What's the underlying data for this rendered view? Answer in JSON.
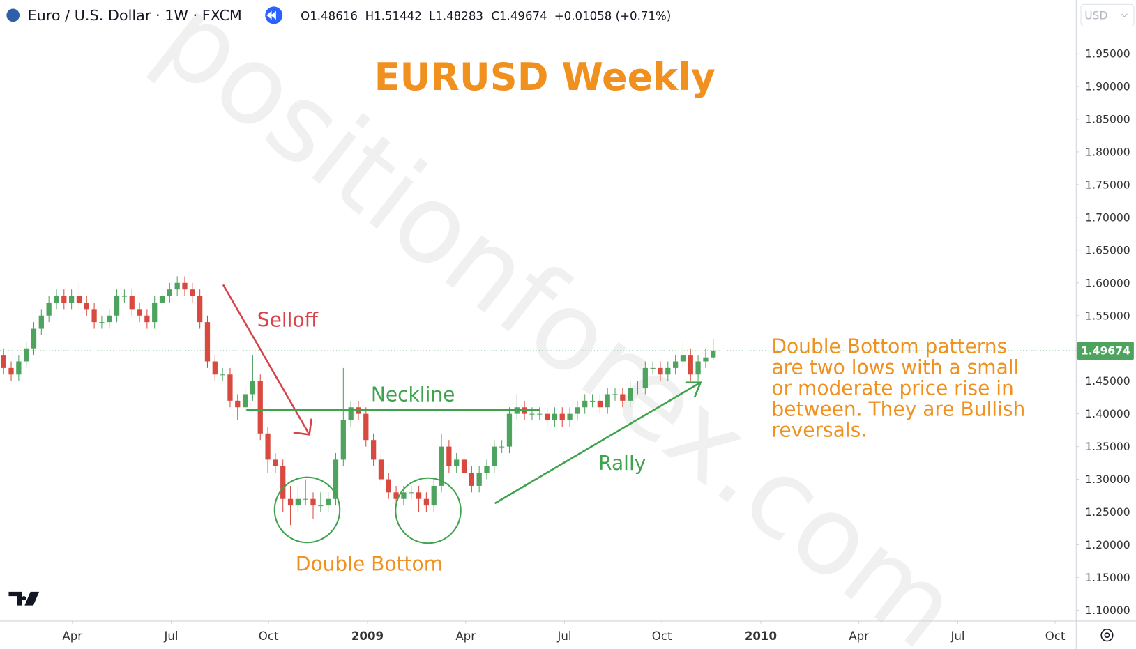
{
  "chart_data": {
    "type": "candlestick",
    "symbol": "Euro / U.S. Dollar · 1W · FXCM",
    "ohlc_header": [
      "O1.48616",
      "H1.51442",
      "L1.48283",
      "C1.49674",
      "+0.01058 (+0.71%)"
    ],
    "currency": "USD",
    "title": "EURUSD Weekly",
    "watermark": "positionforex.com",
    "annotations": {
      "selloff": "Selloff",
      "neckline": "Neckline",
      "double_bottom": "Double Bottom",
      "rally": "Rally",
      "note": [
        "Double Bottom patterns",
        "are two lows with a small",
        "or moderate price rise in",
        "between.  They are Bullish",
        "reversals."
      ]
    },
    "up_color": "#4ea35f",
    "down_color": "#d84a3f",
    "x": [
      0,
      1,
      2,
      3,
      4,
      5,
      6,
      7,
      8,
      9,
      10,
      11,
      12,
      13,
      14,
      15,
      16,
      17,
      18,
      19,
      20,
      21,
      22,
      23,
      24,
      25,
      26,
      27,
      28,
      29,
      30,
      31,
      32,
      33,
      34,
      35,
      36,
      37,
      38,
      39,
      40,
      41,
      42,
      43,
      44,
      45,
      46,
      47,
      48,
      49,
      50,
      51,
      52,
      53,
      54,
      55,
      56,
      57,
      58,
      59,
      60,
      61,
      62,
      63,
      64,
      65,
      66,
      67,
      68,
      69,
      70,
      71,
      72,
      73,
      74,
      75,
      76,
      77,
      78,
      79,
      80,
      81,
      82,
      83,
      84,
      85,
      86,
      87,
      88,
      89,
      90,
      91,
      92,
      93,
      94
    ],
    "open": [
      1.49,
      1.47,
      1.46,
      1.48,
      1.5,
      1.53,
      1.55,
      1.57,
      1.58,
      1.57,
      1.58,
      1.57,
      1.56,
      1.54,
      1.54,
      1.55,
      1.58,
      1.58,
      1.56,
      1.55,
      1.54,
      1.57,
      1.58,
      1.59,
      1.6,
      1.59,
      1.58,
      1.54,
      1.48,
      1.46,
      1.46,
      1.42,
      1.41,
      1.43,
      1.45,
      1.37,
      1.33,
      1.32,
      1.27,
      1.26,
      1.27,
      1.27,
      1.26,
      1.26,
      1.27,
      1.33,
      1.39,
      1.41,
      1.4,
      1.36,
      1.33,
      1.3,
      1.28,
      1.27,
      1.28,
      1.28,
      1.27,
      1.26,
      1.29,
      1.35,
      1.32,
      1.33,
      1.31,
      1.29,
      1.31,
      1.32,
      1.35,
      1.35,
      1.4,
      1.41,
      1.4,
      1.4,
      1.4,
      1.39,
      1.4,
      1.39,
      1.4,
      1.41,
      1.42,
      1.42,
      1.41,
      1.43,
      1.43,
      1.42,
      1.44,
      1.44,
      1.47,
      1.47,
      1.46,
      1.47,
      1.48,
      1.49,
      1.46,
      1.48,
      1.48616
    ],
    "high": [
      1.5,
      1.48,
      1.49,
      1.51,
      1.54,
      1.56,
      1.58,
      1.59,
      1.59,
      1.59,
      1.6,
      1.58,
      1.57,
      1.55,
      1.56,
      1.59,
      1.59,
      1.59,
      1.57,
      1.56,
      1.58,
      1.59,
      1.6,
      1.61,
      1.61,
      1.6,
      1.59,
      1.55,
      1.49,
      1.47,
      1.47,
      1.43,
      1.44,
      1.49,
      1.46,
      1.38,
      1.34,
      1.33,
      1.29,
      1.29,
      1.3,
      1.28,
      1.28,
      1.28,
      1.34,
      1.47,
      1.42,
      1.42,
      1.41,
      1.37,
      1.34,
      1.31,
      1.29,
      1.29,
      1.29,
      1.29,
      1.28,
      1.3,
      1.37,
      1.36,
      1.34,
      1.34,
      1.32,
      1.32,
      1.33,
      1.36,
      1.36,
      1.41,
      1.43,
      1.42,
      1.41,
      1.41,
      1.41,
      1.41,
      1.41,
      1.41,
      1.42,
      1.43,
      1.43,
      1.43,
      1.44,
      1.44,
      1.44,
      1.45,
      1.45,
      1.48,
      1.48,
      1.48,
      1.48,
      1.49,
      1.51,
      1.5,
      1.49,
      1.5,
      1.51442
    ],
    "low": [
      1.46,
      1.45,
      1.45,
      1.47,
      1.49,
      1.52,
      1.54,
      1.56,
      1.56,
      1.56,
      1.56,
      1.55,
      1.53,
      1.53,
      1.53,
      1.54,
      1.57,
      1.55,
      1.54,
      1.53,
      1.53,
      1.56,
      1.57,
      1.58,
      1.58,
      1.57,
      1.53,
      1.47,
      1.45,
      1.45,
      1.41,
      1.39,
      1.4,
      1.42,
      1.36,
      1.31,
      1.31,
      1.25,
      1.23,
      1.25,
      1.26,
      1.24,
      1.25,
      1.25,
      1.26,
      1.32,
      1.38,
      1.39,
      1.35,
      1.32,
      1.29,
      1.27,
      1.26,
      1.26,
      1.27,
      1.25,
      1.25,
      1.25,
      1.28,
      1.31,
      1.31,
      1.3,
      1.28,
      1.28,
      1.3,
      1.31,
      1.34,
      1.34,
      1.39,
      1.39,
      1.39,
      1.39,
      1.38,
      1.38,
      1.38,
      1.38,
      1.39,
      1.4,
      1.41,
      1.4,
      1.4,
      1.42,
      1.41,
      1.41,
      1.43,
      1.43,
      1.46,
      1.45,
      1.45,
      1.46,
      1.47,
      1.45,
      1.45,
      1.47,
      1.48283
    ],
    "close": [
      1.47,
      1.46,
      1.48,
      1.5,
      1.53,
      1.55,
      1.57,
      1.58,
      1.57,
      1.58,
      1.57,
      1.56,
      1.54,
      1.54,
      1.55,
      1.58,
      1.58,
      1.56,
      1.55,
      1.54,
      1.57,
      1.58,
      1.59,
      1.6,
      1.59,
      1.58,
      1.54,
      1.48,
      1.46,
      1.46,
      1.42,
      1.41,
      1.43,
      1.45,
      1.37,
      1.33,
      1.32,
      1.27,
      1.26,
      1.27,
      1.27,
      1.26,
      1.26,
      1.27,
      1.33,
      1.39,
      1.41,
      1.4,
      1.36,
      1.33,
      1.3,
      1.28,
      1.27,
      1.28,
      1.28,
      1.27,
      1.26,
      1.29,
      1.35,
      1.32,
      1.33,
      1.31,
      1.29,
      1.31,
      1.32,
      1.35,
      1.35,
      1.4,
      1.41,
      1.4,
      1.4,
      1.4,
      1.39,
      1.4,
      1.39,
      1.4,
      1.41,
      1.42,
      1.42,
      1.41,
      1.43,
      1.43,
      1.42,
      1.44,
      1.44,
      1.47,
      1.47,
      1.46,
      1.47,
      1.48,
      1.49,
      1.46,
      1.48,
      1.48616,
      1.49674
    ],
    "xlim": [
      -0.48,
      142.04
    ],
    "xticks": [
      {
        "value": 9.1,
        "label": "Apr"
      },
      {
        "value": 22.2,
        "label": "Jul"
      },
      {
        "value": 35.1,
        "label": "Oct"
      },
      {
        "value": 48.2,
        "label": "2009"
      },
      {
        "value": 61.2,
        "label": "Apr"
      },
      {
        "value": 74.3,
        "label": "Jul"
      },
      {
        "value": 87.2,
        "label": "Oct"
      },
      {
        "value": 100.3,
        "label": "2010"
      },
      {
        "value": 113.3,
        "label": "Apr"
      },
      {
        "value": 126.4,
        "label": "Jul"
      },
      {
        "value": 139.3,
        "label": "Oct"
      }
    ],
    "ylim": [
      1.084,
      2.032
    ],
    "yticks": [
      {
        "value": 1.1,
        "label": "1.10000"
      },
      {
        "value": 1.15,
        "label": "1.15000"
      },
      {
        "value": 1.2,
        "label": "1.20000"
      },
      {
        "value": 1.25,
        "label": "1.25000"
      },
      {
        "value": 1.3,
        "label": "1.30000"
      },
      {
        "value": 1.35,
        "label": "1.35000"
      },
      {
        "value": 1.4,
        "label": "1.40000"
      },
      {
        "value": 1.45,
        "label": "1.45000"
      },
      {
        "value": 1.5,
        "label": "1.50000"
      },
      {
        "value": 1.55,
        "label": "1.55000"
      },
      {
        "value": 1.6,
        "label": "1.60000"
      },
      {
        "value": 1.65,
        "label": "1.65000"
      },
      {
        "value": 1.7,
        "label": "1.70000"
      },
      {
        "value": 1.75,
        "label": "1.75000"
      },
      {
        "value": 1.8,
        "label": "1.80000"
      },
      {
        "value": 1.85,
        "label": "1.85000"
      },
      {
        "value": 1.9,
        "label": "1.90000"
      },
      {
        "value": 1.95,
        "label": "1.95000"
      }
    ],
    "grid": false
  }
}
